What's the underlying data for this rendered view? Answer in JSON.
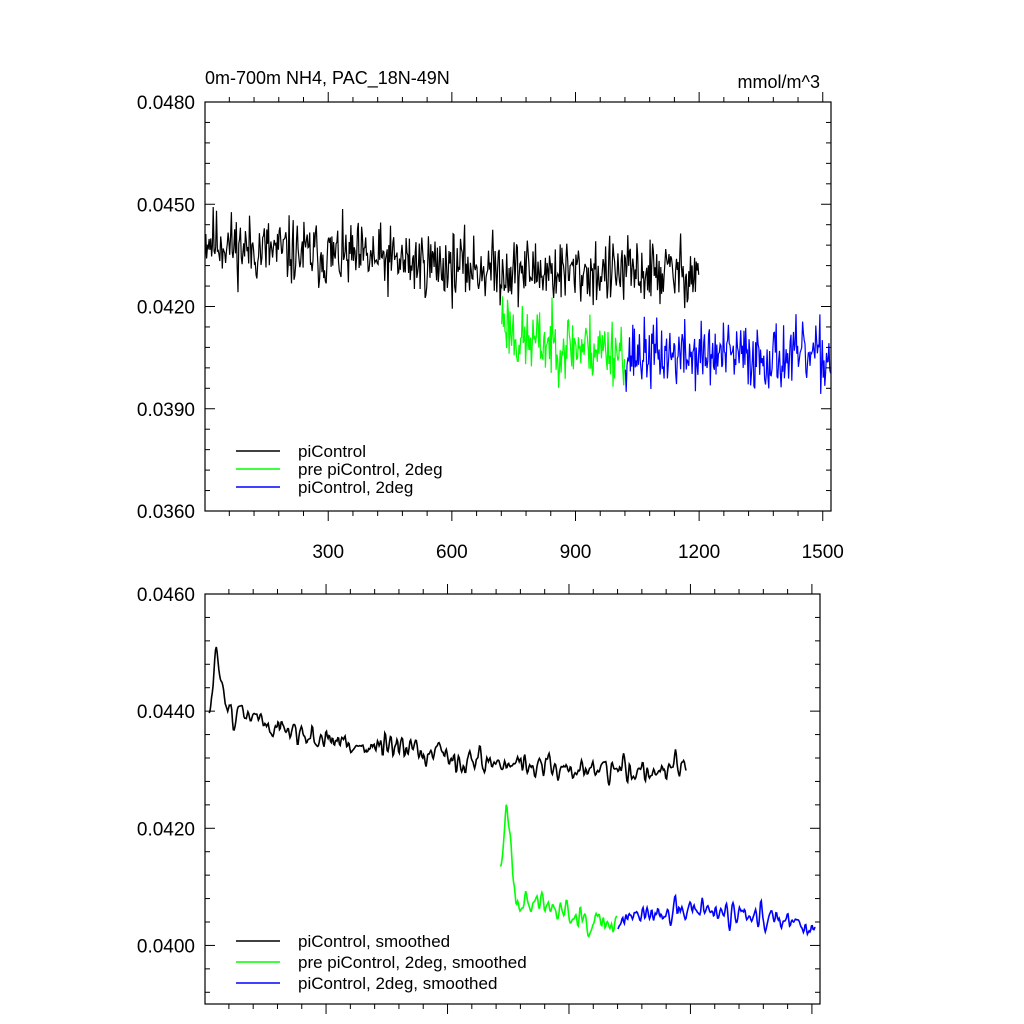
{
  "chart_data": [
    {
      "type": "line",
      "title": "0m-700m NH4, PAC_18N-49N",
      "units": "mmol/m^3",
      "xlabel": "",
      "ylabel": "",
      "xlim": [
        1,
        1520
      ],
      "ylim": [
        0.036,
        0.048
      ],
      "x_ticks": [
        300,
        600,
        900,
        1200,
        1500
      ],
      "x_tick_labels": [
        "300",
        "600",
        "900",
        "1200",
        "1500"
      ],
      "y_ticks": [
        0.036,
        0.039,
        0.042,
        0.045,
        0.048
      ],
      "y_tick_labels": [
        "0.0360",
        "0.0390",
        "0.0420",
        "0.0450",
        "0.0480"
      ],
      "legend_position": "bottom-left",
      "series": [
        {
          "name": "piControl",
          "color": "#000000",
          "x_start": 1,
          "x_end": 1200,
          "trend": [
            [
              1,
              0.044
            ],
            [
              100,
              0.0437
            ],
            [
              300,
              0.0435
            ],
            [
              500,
              0.0433
            ],
            [
              700,
              0.0431
            ],
            [
              900,
              0.043
            ],
            [
              1200,
              0.043
            ]
          ],
          "noise": 0.00085,
          "seed": 11
        },
        {
          "name": "pre piControl, 2deg",
          "color": "#00ff00",
          "x_start": 721,
          "x_end": 1020,
          "trend": [
            [
              721,
              0.0418
            ],
            [
              760,
              0.041
            ],
            [
              1020,
              0.0407
            ]
          ],
          "noise": 0.00085,
          "seed": 23
        },
        {
          "name": "piControl, 2deg",
          "color": "#0000ff",
          "x_start": 1021,
          "x_end": 1520,
          "trend": [
            [
              1021,
              0.0406
            ],
            [
              1520,
              0.0405
            ]
          ],
          "noise": 0.00085,
          "seed": 37
        }
      ]
    },
    {
      "type": "line",
      "title": "",
      "xlabel": "",
      "ylabel": "",
      "xlim": [
        1,
        1520
      ],
      "ylim": [
        0.039,
        0.046
      ],
      "x_ticks": [
        300,
        600,
        900,
        1200,
        1500
      ],
      "x_tick_labels": [],
      "y_ticks": [
        0.04,
        0.042,
        0.044,
        0.046
      ],
      "y_tick_labels": [
        "0.0400",
        "0.0420",
        "0.0440",
        "0.0460"
      ],
      "legend_position": "bottom-left",
      "series": [
        {
          "name": "piControl, smoothed",
          "color": "#000000",
          "x_start": 11,
          "x_end": 1190,
          "trend": [
            [
              11,
              0.0438
            ],
            [
              30,
              0.045
            ],
            [
              60,
              0.044
            ],
            [
              300,
              0.0435
            ],
            [
              600,
              0.0432
            ],
            [
              900,
              0.043
            ],
            [
              1190,
              0.043
            ]
          ],
          "noise": 0.00035,
          "seed": 51
        },
        {
          "name": "pre piControl, 2deg, smoothed",
          "color": "#00ff00",
          "x_start": 731,
          "x_end": 1020,
          "trend": [
            [
              731,
              0.041
            ],
            [
              745,
              0.0425
            ],
            [
              770,
              0.0408
            ],
            [
              1020,
              0.0404
            ]
          ],
          "noise": 0.00035,
          "seed": 63
        },
        {
          "name": "piControl, 2deg, smoothed",
          "color": "#0000ff",
          "x_start": 1021,
          "x_end": 1510,
          "trend": [
            [
              1021,
              0.0404
            ],
            [
              1200,
              0.0406
            ],
            [
              1510,
              0.0403
            ]
          ],
          "noise": 0.00035,
          "seed": 77
        }
      ]
    }
  ]
}
